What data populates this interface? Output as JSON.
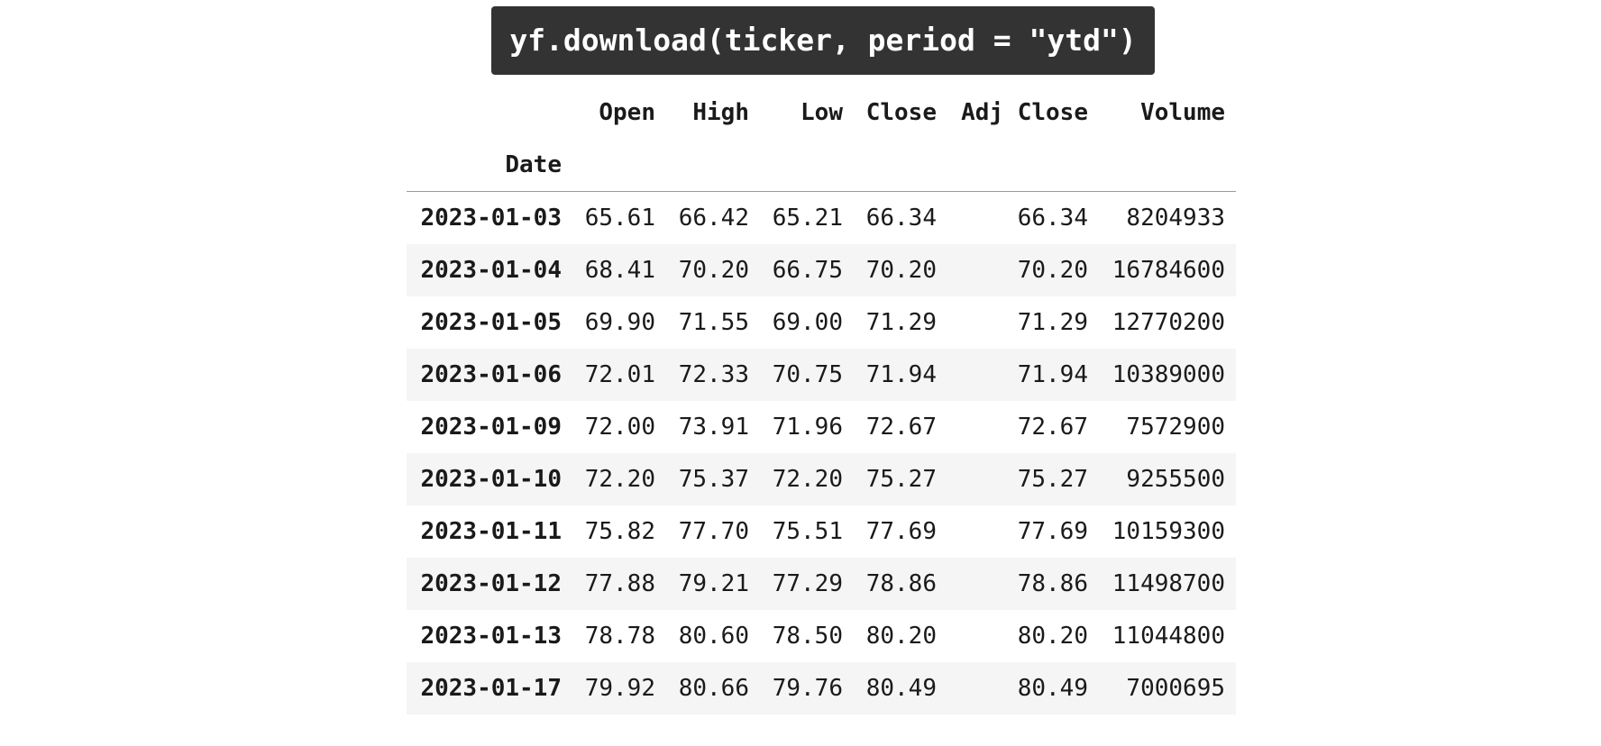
{
  "code_banner": {
    "text": "yf.download(ticker, period = \"ytd\")"
  },
  "table": {
    "columns": [
      "Open",
      "High",
      "Low",
      "Close",
      "Adj Close",
      "Volume"
    ],
    "index_name": "Date",
    "rows": [
      {
        "date": "2023-01-03",
        "values": [
          "65.61",
          "66.42",
          "65.21",
          "66.34",
          "66.34",
          "8204933"
        ]
      },
      {
        "date": "2023-01-04",
        "values": [
          "68.41",
          "70.20",
          "66.75",
          "70.20",
          "70.20",
          "16784600"
        ]
      },
      {
        "date": "2023-01-05",
        "values": [
          "69.90",
          "71.55",
          "69.00",
          "71.29",
          "71.29",
          "12770200"
        ]
      },
      {
        "date": "2023-01-06",
        "values": [
          "72.01",
          "72.33",
          "70.75",
          "71.94",
          "71.94",
          "10389000"
        ]
      },
      {
        "date": "2023-01-09",
        "values": [
          "72.00",
          "73.91",
          "71.96",
          "72.67",
          "72.67",
          "7572900"
        ]
      },
      {
        "date": "2023-01-10",
        "values": [
          "72.20",
          "75.37",
          "72.20",
          "75.27",
          "75.27",
          "9255500"
        ]
      },
      {
        "date": "2023-01-11",
        "values": [
          "75.82",
          "77.70",
          "75.51",
          "77.69",
          "77.69",
          "10159300"
        ]
      },
      {
        "date": "2023-01-12",
        "values": [
          "77.88",
          "79.21",
          "77.29",
          "78.86",
          "78.86",
          "11498700"
        ]
      },
      {
        "date": "2023-01-13",
        "values": [
          "78.78",
          "80.60",
          "78.50",
          "80.20",
          "80.20",
          "11044800"
        ]
      },
      {
        "date": "2023-01-17",
        "values": [
          "79.92",
          "80.66",
          "79.76",
          "80.49",
          "80.49",
          "7000695"
        ]
      }
    ]
  }
}
